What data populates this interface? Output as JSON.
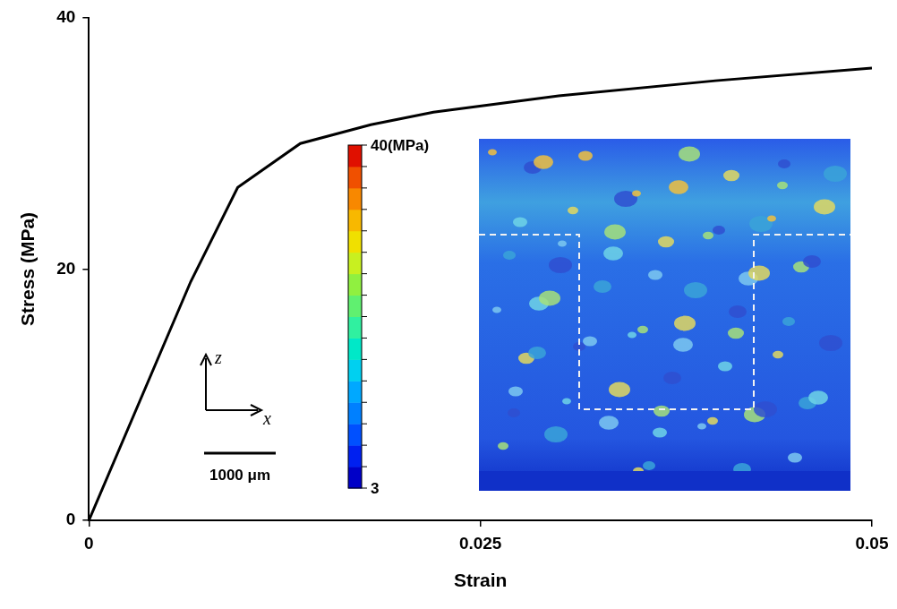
{
  "chart_data": {
    "type": "line",
    "x_label": "Strain",
    "y_label": "Stress (MPa)",
    "x": [
      0,
      0.0065,
      0.0095,
      0.0135,
      0.018,
      0.022,
      0.03,
      0.04,
      0.05
    ],
    "values": [
      0,
      19,
      26.5,
      30,
      31.5,
      32.5,
      33.8,
      35,
      36
    ],
    "color": "#000000",
    "line_style": "solid",
    "marker": "none",
    "xlim": [
      0,
      0.05
    ],
    "xticks": [
      0,
      0.025,
      0.05
    ],
    "ylim": [
      0,
      40
    ],
    "yticks": [
      0,
      20,
      40
    ],
    "grid": false,
    "inset": {
      "axis_labels": [
        "z",
        "x"
      ],
      "scale_bar": "1000 μm",
      "colorbar": {
        "range": [
          3,
          40
        ],
        "ticks": [
          3,
          {
            "value": 40,
            "label": "40(MPa)"
          }
        ]
      }
    }
  }
}
